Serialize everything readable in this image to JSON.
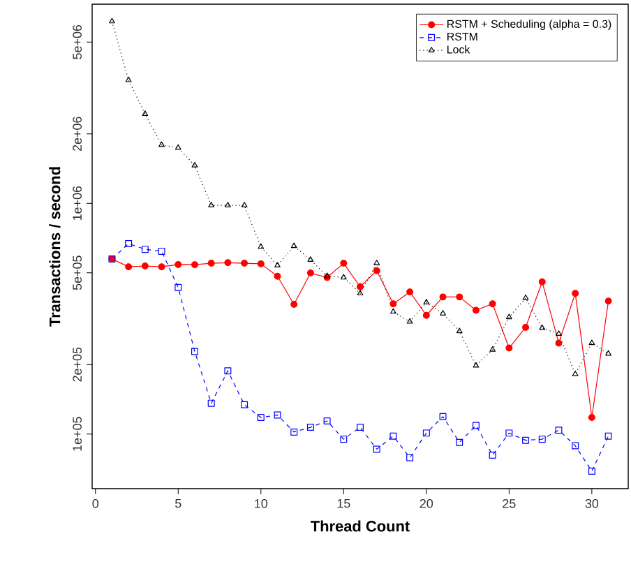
{
  "chart_data": {
    "type": "line",
    "xlabel": "Thread Count",
    "ylabel": "Transactions / second",
    "log": "y",
    "legend": "top right",
    "x": [
      1,
      2,
      3,
      4,
      5,
      6,
      7,
      8,
      9,
      10,
      11,
      12,
      13,
      14,
      15,
      16,
      17,
      18,
      19,
      20,
      21,
      22,
      23,
      24,
      25,
      26,
      27,
      28,
      29,
      30,
      31
    ],
    "xlim": [
      -0.2,
      32.2
    ],
    "xticks": [
      0,
      5,
      10,
      15,
      20,
      25,
      30
    ],
    "ylim": [
      58000,
      7300000
    ],
    "yticks": [
      {
        "value": 100000,
        "label": "1e+05"
      },
      {
        "value": 200000,
        "label": "2e+05"
      },
      {
        "value": 500000,
        "label": "5e+05"
      },
      {
        "value": 1000000,
        "label": "1e+06"
      },
      {
        "value": 2000000,
        "label": "2e+06"
      },
      {
        "value": 5000000,
        "label": "5e+06"
      }
    ],
    "series": [
      {
        "name": "RSTM + Scheduling (alpha = 0.3)",
        "color": "#ff0000",
        "marker": "circle",
        "line_style": "solid",
        "values": [
          574000,
          531000,
          535000,
          531000,
          543000,
          542000,
          550000,
          553000,
          550000,
          547000,
          483000,
          365000,
          499000,
          477000,
          550000,
          435000,
          511000,
          367000,
          413000,
          327000,
          393000,
          393000,
          344000,
          367000,
          236000,
          290000,
          457000,
          248000,
          407000,
          118000,
          377000
        ]
      },
      {
        "name": "RSTM",
        "color": "#0000ff",
        "marker": "square",
        "line_style": "dashed",
        "values": [
          574000,
          669000,
          632000,
          620000,
          432000,
          228000,
          136000,
          188000,
          134000,
          118000,
          121000,
          102000,
          107000,
          114000,
          95000,
          107000,
          86000,
          98000,
          79000,
          101000,
          119000,
          92000,
          109000,
          81000,
          101000,
          94000,
          95000,
          104000,
          89000,
          69000,
          98000
        ]
      },
      {
        "name": "Lock",
        "color": "#000000",
        "marker": "triangle",
        "line_style": "dotted",
        "values": [
          6150000,
          3420000,
          2440000,
          1790000,
          1740000,
          1460000,
          980000,
          980000,
          980000,
          647000,
          538000,
          653000,
          569000,
          484000,
          477000,
          407000,
          550000,
          339000,
          307000,
          372000,
          333000,
          279000,
          198000,
          232000,
          321000,
          389000,
          288000,
          272000,
          182000,
          248000,
          223000
        ]
      }
    ]
  }
}
